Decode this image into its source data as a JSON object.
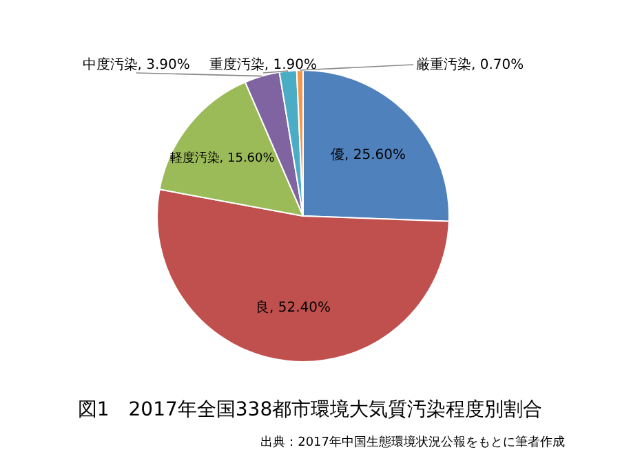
{
  "chart_data": {
    "type": "pie",
    "title": "図1　2017年全国338都市環境大気質汚染程度別割合",
    "annotations": [
      "出典：2017年中国生態環境状況公報をもとに筆者作成"
    ],
    "categories": [
      "優",
      "良",
      "軽度汚染",
      "中度汚染",
      "重度汚染",
      "厳重汚染"
    ],
    "values": [
      25.6,
      52.4,
      15.6,
      3.9,
      1.9,
      0.7
    ],
    "value_labels": [
      "25.60%",
      "52.40%",
      "15.60%",
      "3.90%",
      "1.90%",
      "0.70%"
    ],
    "colors": [
      "#4f81bd",
      "#c0504d",
      "#9bbb59",
      "#8064a2",
      "#4bacc6",
      "#f79646"
    ]
  }
}
